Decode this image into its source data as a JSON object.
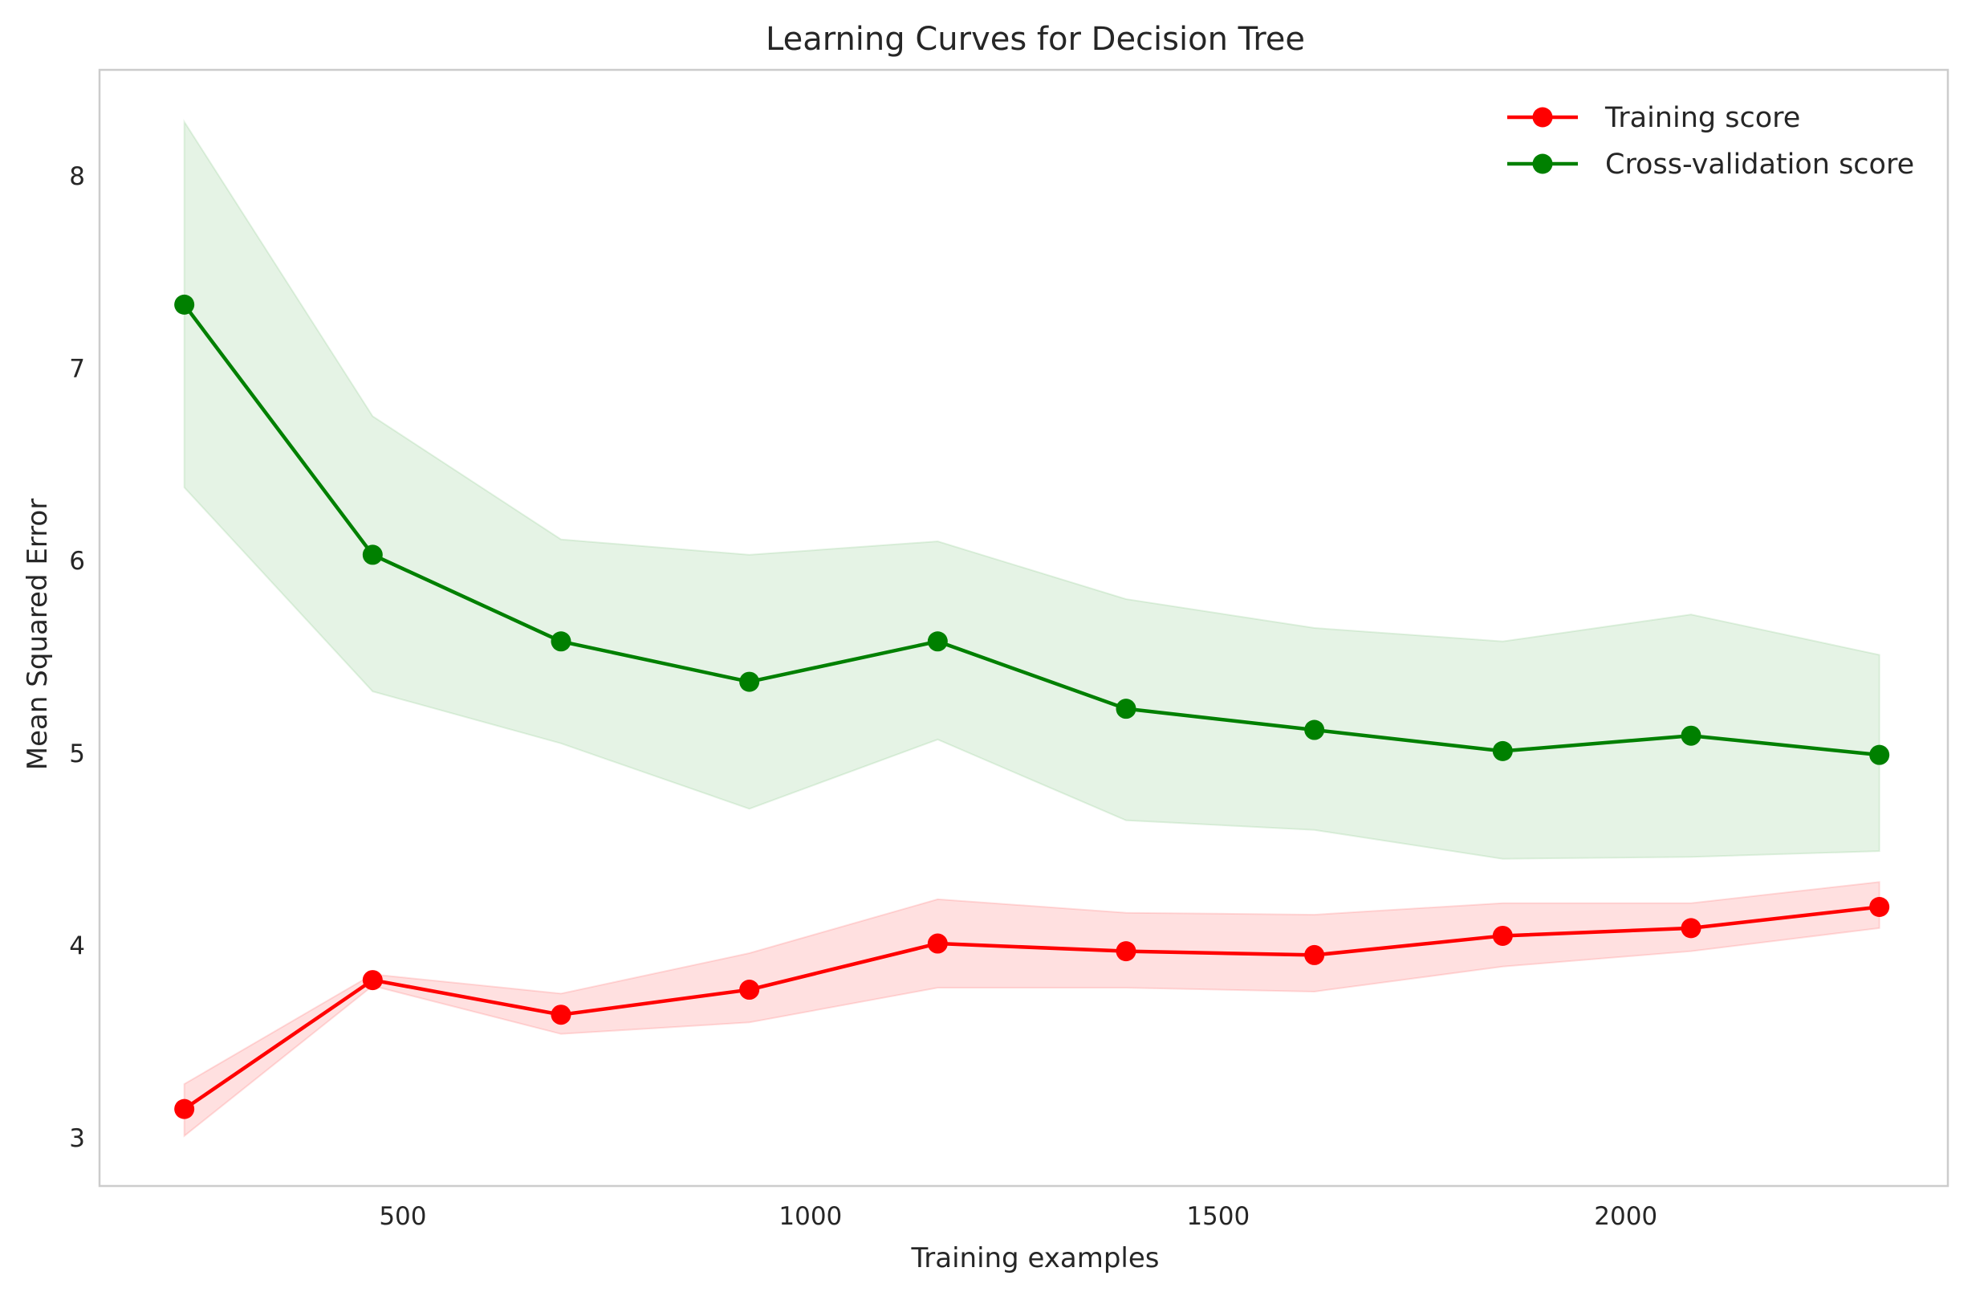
{
  "chart_data": {
    "type": "line",
    "title": "Learning Curves for Decision Tree",
    "xlabel": "Training examples",
    "ylabel": "Mean Squared Error",
    "xlim": [
      128,
      2395
    ],
    "ylim": [
      2.75,
      8.55
    ],
    "x_ticks": [
      500,
      1000,
      1500,
      2000
    ],
    "y_ticks": [
      3,
      4,
      5,
      6,
      7,
      8
    ],
    "grid": false,
    "legend_position": "top-right",
    "x": [
      232,
      463,
      694,
      925,
      1156,
      1387,
      1618,
      1849,
      2080,
      2311
    ],
    "series": [
      {
        "name": "Training score",
        "color": "#ff0000",
        "band_color": "#ff0000",
        "values": [
          3.15,
          3.82,
          3.64,
          3.77,
          4.01,
          3.97,
          3.95,
          4.05,
          4.09,
          4.2
        ],
        "lower": [
          3.01,
          3.79,
          3.54,
          3.6,
          3.78,
          3.78,
          3.76,
          3.89,
          3.97,
          4.09
        ],
        "upper": [
          3.28,
          3.85,
          3.75,
          3.96,
          4.24,
          4.17,
          4.16,
          4.22,
          4.22,
          4.33
        ]
      },
      {
        "name": "Cross-validation score",
        "color": "#008000",
        "band_color": "#2ca02c",
        "values": [
          7.33,
          6.03,
          5.58,
          5.37,
          5.58,
          5.23,
          5.12,
          5.01,
          5.09,
          4.99
        ],
        "lower": [
          6.38,
          5.32,
          5.05,
          4.71,
          5.07,
          4.65,
          4.6,
          4.45,
          4.46,
          4.49
        ],
        "upper": [
          8.28,
          6.75,
          6.11,
          6.03,
          6.1,
          5.8,
          5.65,
          5.58,
          5.72,
          5.51
        ]
      }
    ]
  }
}
